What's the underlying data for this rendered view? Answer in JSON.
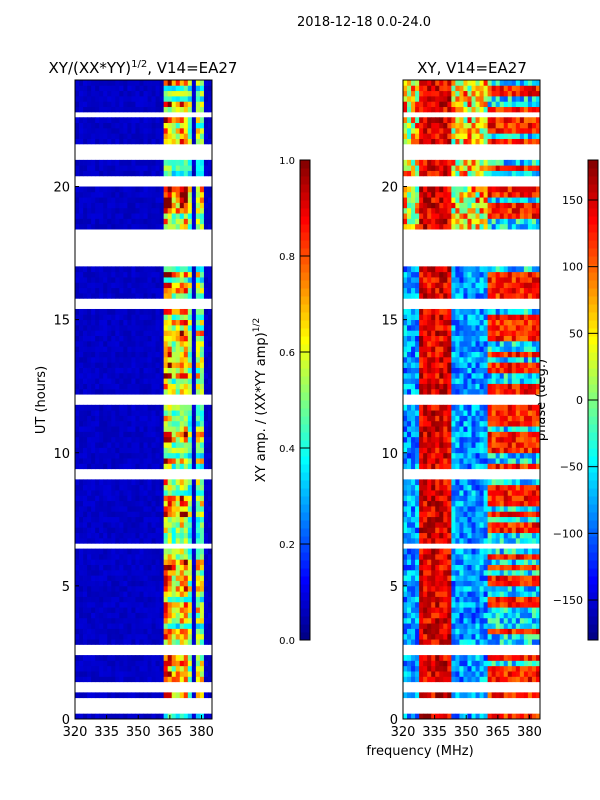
{
  "suptitle": "2018-12-18 0.0-24.0",
  "xlabel": "frequency (MHz)",
  "chart_data": [
    {
      "type": "heatmap",
      "title_main": "XY/(XX*YY)",
      "title_sup": "1/2",
      "title_rest": ", V14=EA27",
      "ylabel": "UT (hours)",
      "xlim": [
        320,
        385
      ],
      "ylim": [
        0,
        24
      ],
      "xticks": [
        320,
        335,
        350,
        365,
        380
      ],
      "yticks": [
        0,
        5,
        10,
        15,
        20
      ],
      "colorbar": {
        "label_main": "XY amp. / (XX*YY amp)",
        "label_sup": "1/2",
        "range": [
          0,
          1
        ],
        "ticks": [
          "0.0",
          "0.2",
          "0.4",
          "0.6",
          "0.8",
          "1.0"
        ],
        "tick_values": [
          0,
          0.2,
          0.4,
          0.6,
          0.8,
          1.0
        ]
      },
      "colormap": "jet",
      "background_value": 0.05,
      "bright_channels_MHz": [
        [
          362,
          366,
          0.6
        ],
        [
          366,
          369,
          0.45
        ],
        [
          370,
          373,
          0.55
        ],
        [
          374,
          376,
          0.35
        ],
        [
          378,
          381,
          0.4
        ]
      ],
      "flagged_hours": [
        [
          0.2,
          0.8
        ],
        [
          0.9,
          1.3
        ],
        [
          2.5,
          2.75
        ],
        [
          6.5,
          6.65
        ],
        [
          9.1,
          9.4
        ],
        [
          11.8,
          12.15
        ],
        [
          15.3,
          15.7
        ],
        [
          17.1,
          18.3
        ],
        [
          20.0,
          20.3
        ],
        [
          21.1,
          21.5
        ],
        [
          22.6,
          22.8
        ]
      ]
    },
    {
      "type": "heatmap",
      "title": "XY, V14=EA27",
      "xlim": [
        320,
        385
      ],
      "ylim": [
        0,
        24
      ],
      "xticks": [
        320,
        335,
        350,
        365,
        380
      ],
      "yticks": [
        0,
        5,
        10,
        15,
        20
      ],
      "colorbar": {
        "label": "phase (deg.)",
        "range": [
          -180,
          180
        ],
        "ticks": [
          "−150",
          "−100",
          "−50",
          "0",
          "50",
          "100",
          "150"
        ],
        "tick_values": [
          -150,
          -100,
          -50,
          0,
          50,
          100,
          150
        ]
      },
      "colormap": "jet",
      "red_band_MHz": [
        328,
        342
      ],
      "flagged_hours": [
        [
          0.2,
          0.8
        ],
        [
          0.9,
          1.3
        ],
        [
          2.5,
          2.75
        ],
        [
          6.5,
          6.65
        ],
        [
          9.1,
          9.4
        ],
        [
          11.8,
          12.15
        ],
        [
          15.3,
          15.7
        ],
        [
          17.1,
          18.3
        ],
        [
          20.0,
          20.3
        ],
        [
          21.1,
          21.5
        ],
        [
          22.6,
          22.8
        ]
      ]
    }
  ]
}
